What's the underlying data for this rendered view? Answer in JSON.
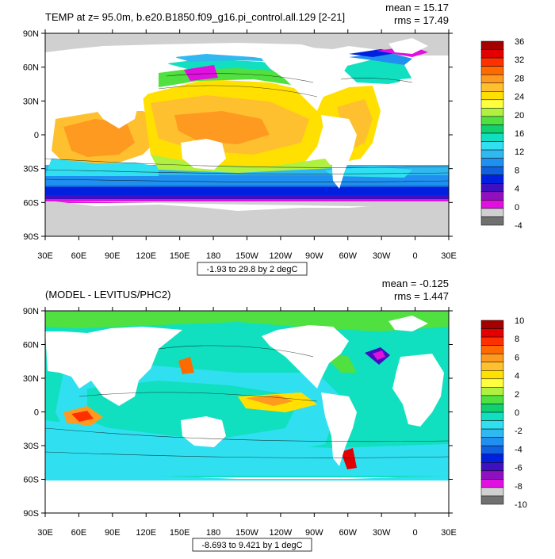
{
  "panels": [
    {
      "title": "TEMP at z=  95.0m, b.e20.B1850.f09_g16.pi_control.all.129 [2-21]",
      "stats": {
        "mean": "mean = 15.17",
        "rms": "rms = 17.49"
      },
      "range_label": "-1.93 to 29.8 by 2 degC",
      "colorbar": {
        "labels": [
          "36",
          "32",
          "28",
          "24",
          "20",
          "16",
          "12",
          "8",
          "4",
          "0",
          "-4"
        ],
        "colors": [
          "#a50000",
          "#e30000",
          "#ff3000",
          "#ff6a00",
          "#ff9a20",
          "#ffc030",
          "#ffe000",
          "#ffff40",
          "#b0f040",
          "#50e040",
          "#10d070",
          "#10e0c0",
          "#30e0f0",
          "#30b8f0",
          "#2090f0",
          "#1060e0",
          "#0020e0",
          "#4010c0",
          "#9010c0",
          "#e010e0",
          "#d0d0d0",
          "#707070"
        ]
      }
    },
    {
      "title": "(MODEL - LEVITUS/PHC2)",
      "stats": {
        "mean": "mean = -0.125",
        "rms": "rms = 1.447"
      },
      "range_label": "-8.693 to 9.421 by 1 degC",
      "colorbar": {
        "labels": [
          "10",
          "8",
          "6",
          "4",
          "2",
          "0",
          "-2",
          "-4",
          "-6",
          "-8",
          "-10"
        ],
        "colors": [
          "#a50000",
          "#e30000",
          "#ff3000",
          "#ff6a00",
          "#ff9a20",
          "#ffc030",
          "#ffe000",
          "#ffff40",
          "#b0f040",
          "#50e040",
          "#10d070",
          "#10e0c0",
          "#30e0f0",
          "#30b8f0",
          "#2090f0",
          "#1060e0",
          "#0020e0",
          "#4010c0",
          "#9010c0",
          "#e010e0",
          "#d0d0d0",
          "#707070"
        ]
      }
    }
  ],
  "axes": {
    "lat_labels": [
      "90N",
      "60N",
      "30N",
      "0",
      "30S",
      "60S",
      "90S"
    ],
    "lon_labels": [
      "30E",
      "60E",
      "90E",
      "120E",
      "150E",
      "180",
      "150W",
      "120W",
      "90W",
      "60W",
      "30W",
      "0",
      "30E"
    ]
  }
}
